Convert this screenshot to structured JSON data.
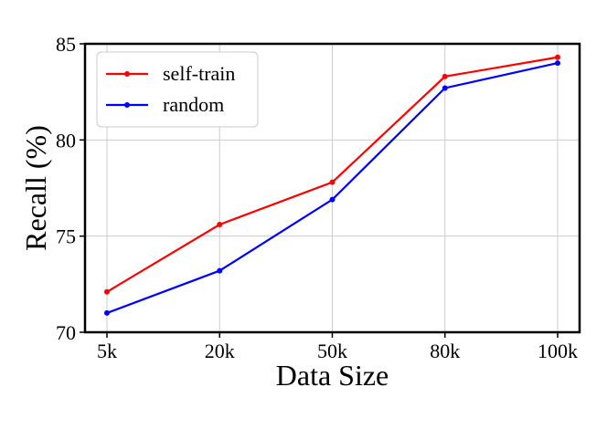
{
  "chart_data": {
    "type": "line",
    "xlabel": "Data Size",
    "ylabel": "Recall (%)",
    "categories": [
      "5k",
      "20k",
      "50k",
      "80k",
      "100k"
    ],
    "ylim": [
      70,
      85
    ],
    "yticks": [
      70,
      75,
      80,
      85
    ],
    "grid": true,
    "legend_position": "top-left",
    "series": [
      {
        "name": "self-train",
        "color": "#ff0000",
        "values": [
          72.1,
          75.6,
          77.8,
          83.3,
          84.3
        ]
      },
      {
        "name": "random",
        "color": "#0000ff",
        "values": [
          71.0,
          73.2,
          76.9,
          82.7,
          84.0
        ]
      }
    ]
  }
}
